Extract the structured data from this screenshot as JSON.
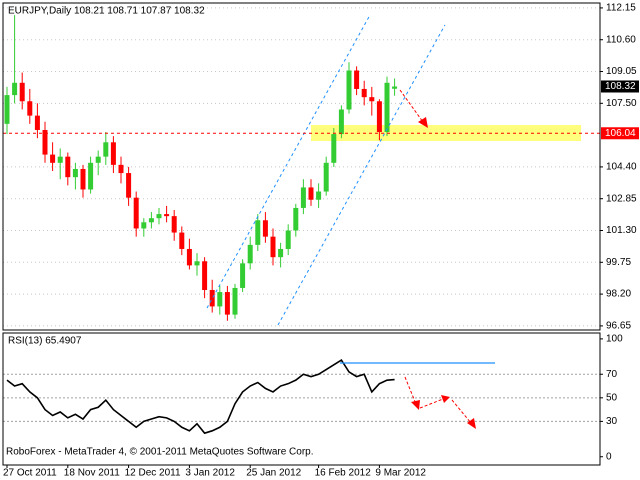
{
  "chart_data": [
    {
      "type": "candlestick",
      "title": "EURJPY,Daily  108.21 108.71 107.87 108.32",
      "categories": [
        "27 Oct 2011",
        null,
        null,
        null,
        null,
        null,
        null,
        null,
        "18 Nov 2011",
        null,
        null,
        null,
        null,
        null,
        null,
        null,
        "12 Dec 2011",
        null,
        null,
        null,
        null,
        null,
        null,
        null,
        "3 Jan 2012",
        null,
        null,
        null,
        null,
        null,
        null,
        null,
        "25 Jan 2012",
        null,
        null,
        null,
        null,
        null,
        null,
        null,
        null,
        "16 Feb 2012",
        null,
        null,
        null,
        null,
        null,
        null,
        null,
        "9 Mar 2012",
        null,
        null
      ],
      "open": [
        106.5,
        107.9,
        108.5,
        107.6,
        106.9,
        106.2,
        105.0,
        104.6,
        104.9,
        103.9,
        104.3,
        103.3,
        104.6,
        104.9,
        105.6,
        104.5,
        104.1,
        102.9,
        101.4,
        101.7,
        101.9,
        102.1,
        102.0,
        101.2,
        100.4,
        99.6,
        99.8,
        98.4,
        97.6,
        98.3,
        97.2,
        98.5,
        99.7,
        100.6,
        101.8,
        101.0,
        100.0,
        100.4,
        101.3,
        102.4,
        103.4,
        102.8,
        103.2,
        104.6,
        106.0,
        107.2,
        109.1,
        108.2,
        107.8,
        107.6,
        106.1,
        108.21
      ],
      "high": [
        108.3,
        111.8,
        109.0,
        108.2,
        107.5,
        106.6,
        105.6,
        105.3,
        105.1,
        104.6,
        104.5,
        104.9,
        105.2,
        106.1,
        105.9,
        104.9,
        104.4,
        103.2,
        101.9,
        102.2,
        102.4,
        102.5,
        102.3,
        101.5,
        100.9,
        100.2,
        100.0,
        98.9,
        98.6,
        98.6,
        98.7,
        99.9,
        101.0,
        102.1,
        102.2,
        101.4,
        100.7,
        101.6,
        102.6,
        103.8,
        103.8,
        103.6,
        104.9,
        106.3,
        107.4,
        109.5,
        109.3,
        108.6,
        108.3,
        107.7,
        108.8,
        108.71
      ],
      "low": [
        106.0,
        107.5,
        107.2,
        106.5,
        105.8,
        104.6,
        104.2,
        103.8,
        103.5,
        103.3,
        102.9,
        103.1,
        104.0,
        104.5,
        104.1,
        103.6,
        102.5,
        101.0,
        101.0,
        101.4,
        101.6,
        101.7,
        100.8,
        100.1,
        99.4,
        99.1,
        98.0,
        97.3,
        97.2,
        96.9,
        97.0,
        98.3,
        99.4,
        100.3,
        100.7,
        99.6,
        99.5,
        100.1,
        101.0,
        102.1,
        102.5,
        102.4,
        103.0,
        104.4,
        105.8,
        107.0,
        107.9,
        107.4,
        106.9,
        105.7,
        105.9,
        107.87
      ],
      "close": [
        107.9,
        108.5,
        107.6,
        106.9,
        106.2,
        105.0,
        104.6,
        104.9,
        103.9,
        104.3,
        103.3,
        104.6,
        104.9,
        105.6,
        104.5,
        104.1,
        102.9,
        101.4,
        101.7,
        101.9,
        102.1,
        102.0,
        101.2,
        100.4,
        99.6,
        99.8,
        98.4,
        97.6,
        98.3,
        97.2,
        98.5,
        99.7,
        100.6,
        101.8,
        101.0,
        100.0,
        100.4,
        101.3,
        102.4,
        103.4,
        102.8,
        103.2,
        104.6,
        106.0,
        107.2,
        109.1,
        108.2,
        107.8,
        107.6,
        106.1,
        108.5,
        108.32
      ],
      "up_color": "#33cc33",
      "down_color": "#ff0000",
      "ylim": [
        96.45,
        112.39
      ],
      "yticks": [
        112.15,
        {
          "value": 110.6,
          "label": "110.60"
        },
        109.05,
        {
          "value": 107.5,
          "label": "107.50"
        },
        {
          "value": 104.4,
          "label": "104.40"
        },
        102.85,
        {
          "value": 101.3,
          "label": "101.30"
        },
        99.75,
        {
          "value": 98.2,
          "label": "98.20"
        },
        96.65
      ],
      "level": 106.04,
      "level_color": "#ff0000",
      "grid": true
    },
    {
      "type": "line",
      "title": "RSI(13) 65.4907",
      "annotation": "RoboForex - MetaTrader 4, © 2001-2011 MetaQuotes Software Corp.",
      "values": [
        65,
        60,
        62,
        55,
        50,
        40,
        35,
        38,
        33,
        36,
        32,
        40,
        42,
        48,
        40,
        35,
        30,
        25,
        30,
        32,
        34,
        33,
        30,
        25,
        22,
        28,
        20,
        22,
        25,
        30,
        45,
        55,
        60,
        63,
        58,
        55,
        60,
        62,
        65,
        70,
        68,
        70,
        74,
        78,
        82,
        72,
        68,
        70,
        55,
        62,
        65,
        65.49
      ],
      "color": "#000000",
      "ylim": [
        -7,
        105
      ],
      "yticks": [
        100,
        70,
        50,
        30,
        0
      ],
      "levels": [
        70,
        50,
        30
      ]
    }
  ]
}
